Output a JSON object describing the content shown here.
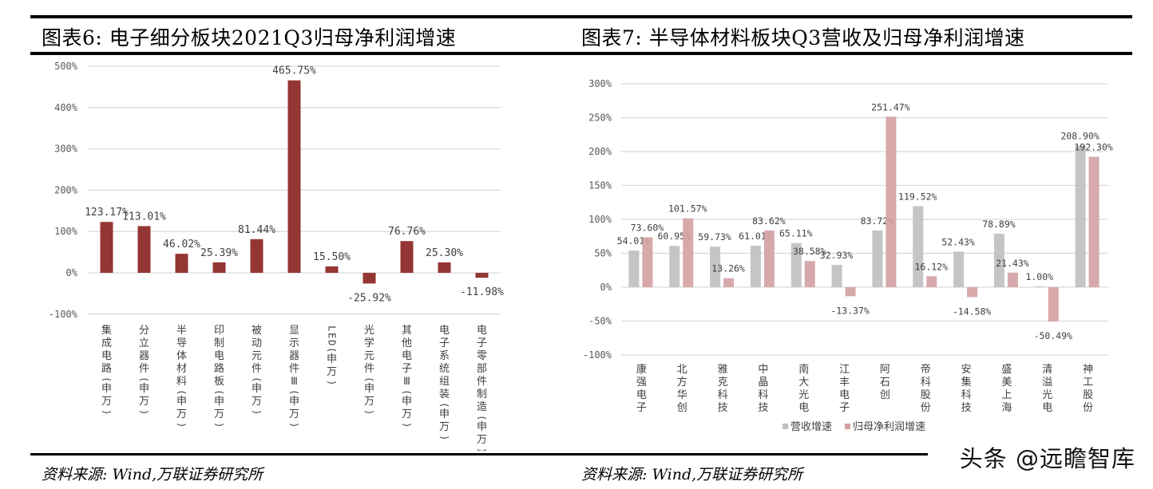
{
  "left": {
    "title": "图表6: 电子细分板块2021Q3归母净利润增速",
    "source": "资料来源: Wind,万联证券研究所"
  },
  "right": {
    "title": "图表7: 半导体材料板块Q3营收及归母净利润增速",
    "source": "资料来源: Wind,万联证券研究所",
    "legend": [
      {
        "label": "营收增速",
        "color": "#bfbfbf"
      },
      {
        "label": "归母净利润增速",
        "color": "#d4a0a2"
      }
    ]
  },
  "watermark": "头条 @远瞻智库",
  "colors": {
    "left_bar": "#943634",
    "revenue_bar": "#bfbfbf",
    "profit_bar": "#d4a0a2",
    "gridline": "#d9d9d9",
    "axis_text": "#595959"
  },
  "chart_data": [
    {
      "type": "bar",
      "title": "图表6: 电子细分板块2021Q3归母净利润增速",
      "xlabel": "",
      "ylabel": "",
      "ylim": [
        -100,
        500
      ],
      "yticks": [
        "-100%",
        "0%",
        "100%",
        "200%",
        "300%",
        "400%",
        "500%"
      ],
      "grid": true,
      "legend": null,
      "categories": [
        "集成电路(申万)",
        "分立器件(申万)",
        "半导体材料(申万)",
        "印制电路板(申万)",
        "被动元件(申万)",
        "显示器件Ⅲ(申万)",
        "LED(申万)",
        "光学元件(申万)",
        "其他电子Ⅲ(申万)",
        "电子系统组装(申万)",
        "电子零部件制造(申万)"
      ],
      "values": [
        123.17,
        113.01,
        46.02,
        25.39,
        81.44,
        465.75,
        15.5,
        -25.92,
        76.76,
        25.3,
        -11.98
      ],
      "labels": [
        "123.17%",
        "113.01%",
        "46.02%",
        "25.39%",
        "81.44%",
        "465.75%",
        "15.50%",
        "-25.92%",
        "76.76%",
        "25.30%",
        "-11.98%"
      ]
    },
    {
      "type": "bar",
      "title": "图表7: 半导体材料板块Q3营收及归母净利润增速",
      "xlabel": "",
      "ylabel": "",
      "ylim": [
        -100,
        300
      ],
      "yticks": [
        "-100%",
        "-50%",
        "0%",
        "50%",
        "100%",
        "150%",
        "200%",
        "250%",
        "300%"
      ],
      "grid": true,
      "legend_position": "bottom",
      "categories": [
        "康强电子",
        "北方华创",
        "雅克科技",
        "中晶科技",
        "南大光电",
        "江丰电子",
        "阿石创",
        "帝科股份",
        "安集科技",
        "盛美上海",
        "清溢光电",
        "神工股份"
      ],
      "series": [
        {
          "name": "营收增速",
          "values": [
            54.01,
            60.95,
            59.73,
            61.01,
            65.11,
            32.93,
            83.72,
            119.52,
            52.43,
            78.89,
            1.0,
            208.9
          ],
          "labels": [
            "54.01%",
            "60.95%",
            "59.73%",
            "61.01%",
            "65.11%",
            "32.93%",
            "83.72%",
            "119.52%",
            "52.43%",
            "78.89%",
            "1.00%",
            "208.90%"
          ]
        },
        {
          "name": "归母净利润增速",
          "values": [
            73.6,
            101.57,
            13.26,
            83.62,
            38.58,
            -13.37,
            251.47,
            16.12,
            -14.58,
            21.43,
            -50.49,
            192.3
          ],
          "labels": [
            "73.60%",
            "101.57%",
            "13.26%",
            "83.62%",
            "38.58%",
            "-13.37%",
            "251.47%",
            "16.12%",
            "-14.58%",
            "21.43%",
            "-50.49%",
            "192.30%"
          ]
        }
      ]
    }
  ]
}
